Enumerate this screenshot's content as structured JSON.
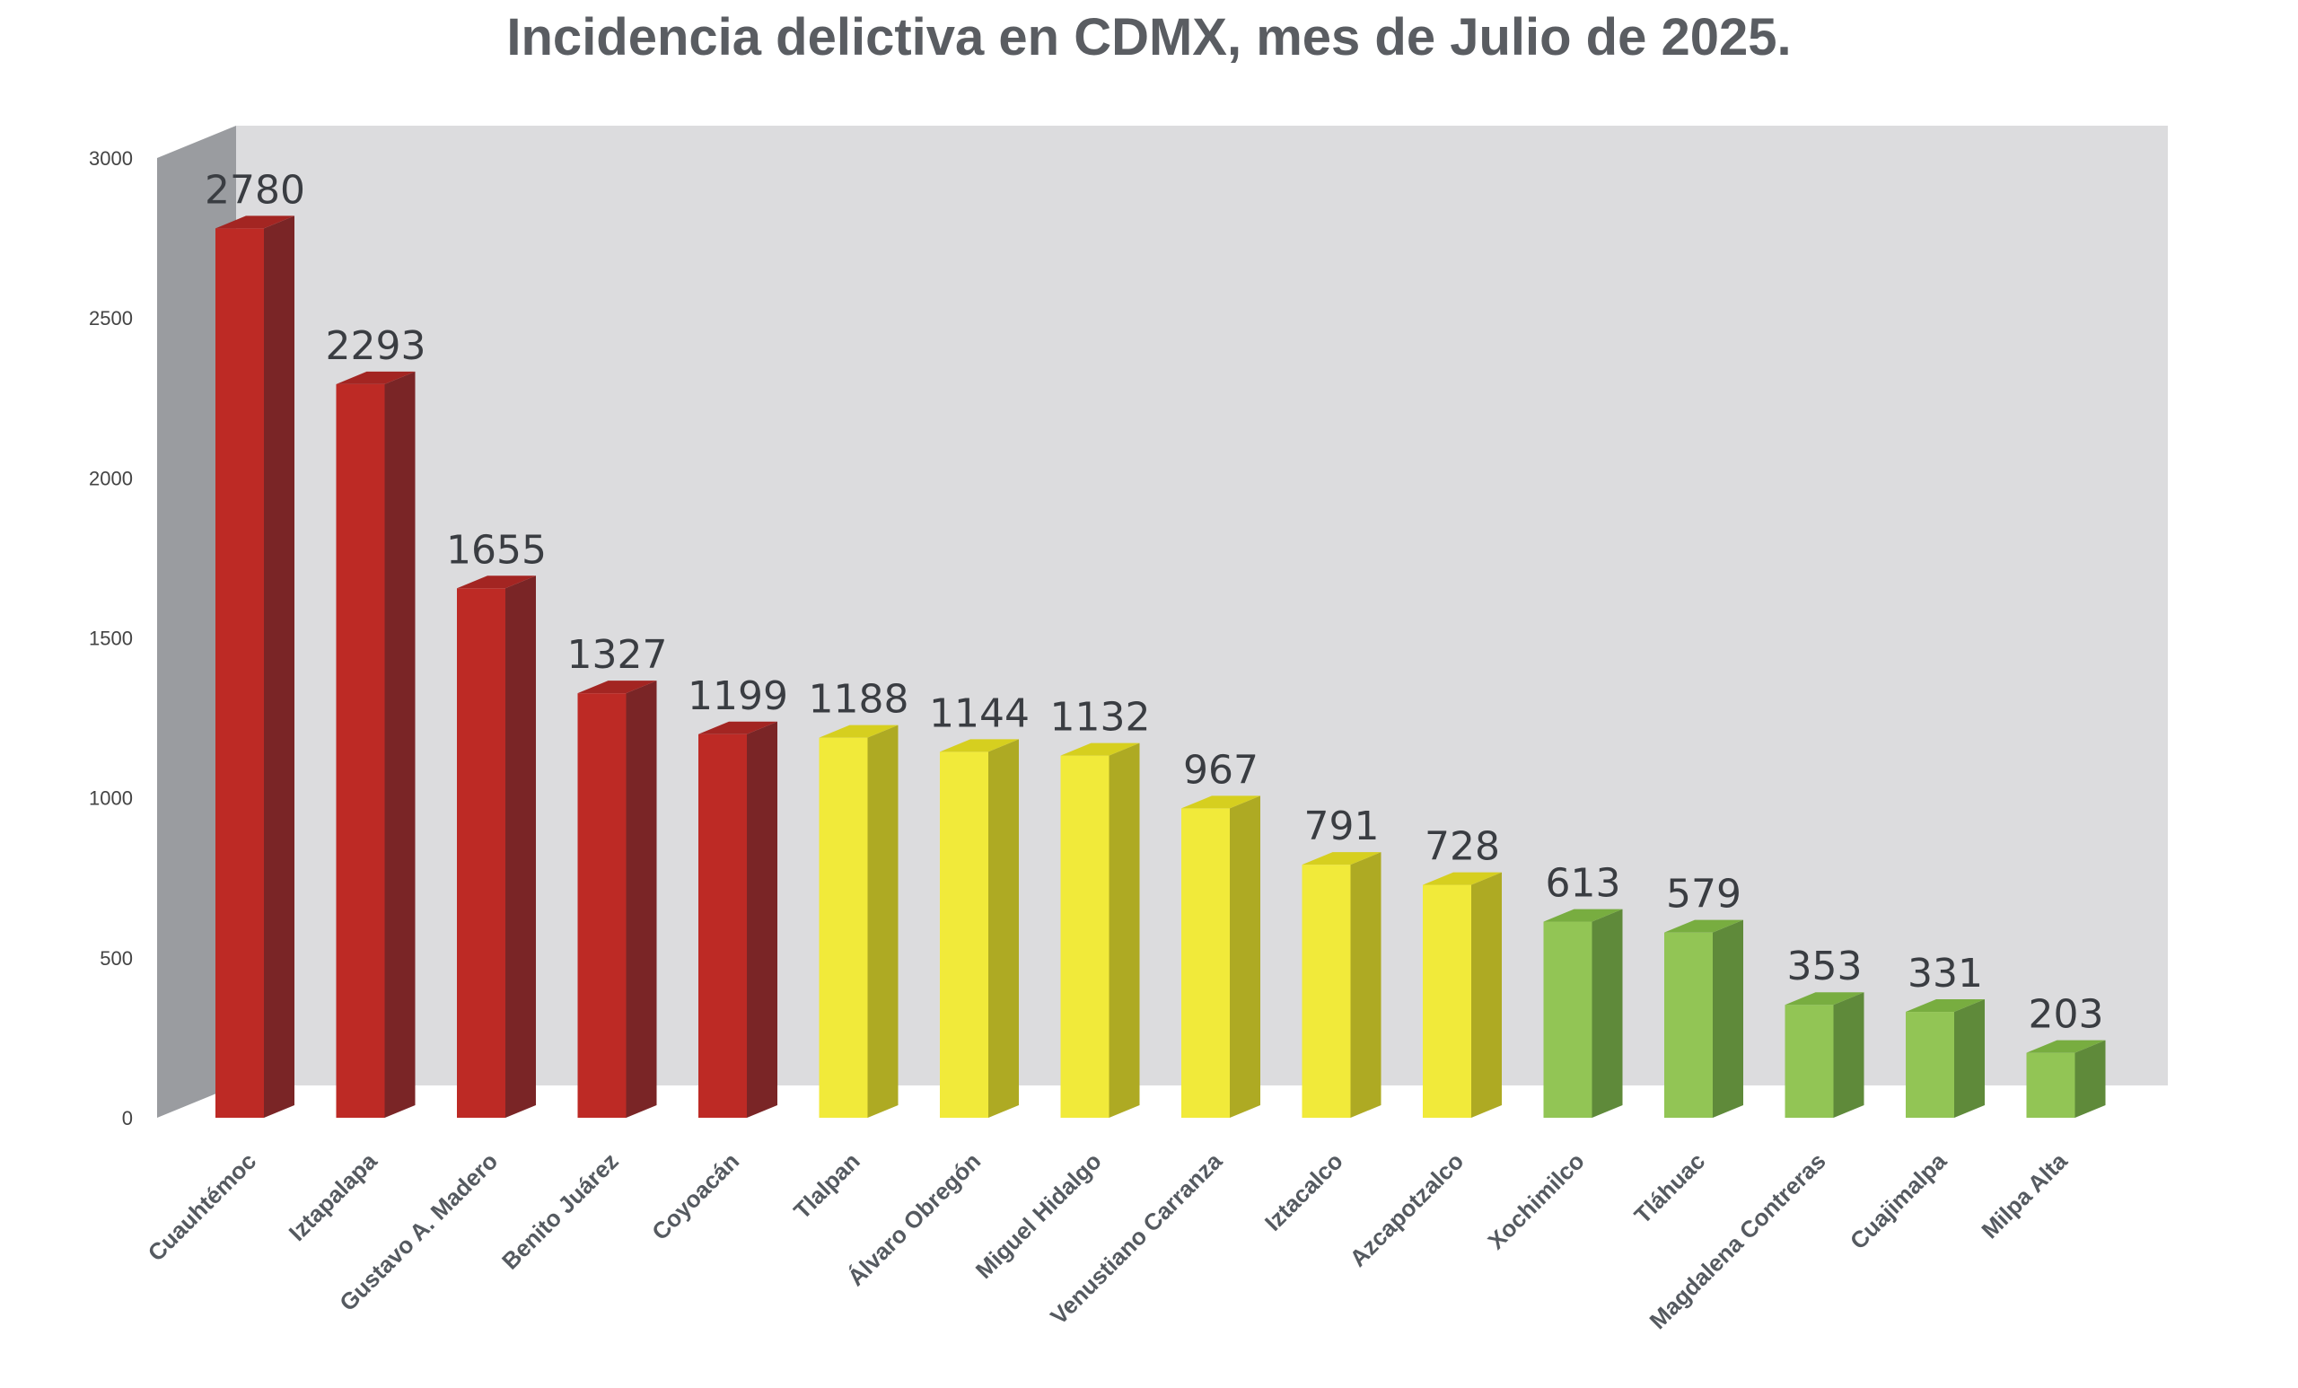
{
  "chart_data": {
    "type": "bar",
    "title": "Incidencia delictiva en CDMX, mes de Julio de 2025.",
    "xlabel": "",
    "ylabel": "",
    "ylim": [
      0,
      3000
    ],
    "yticks": [
      0,
      500,
      1000,
      1500,
      2000,
      2500,
      3000
    ],
    "grid": false,
    "legend": "none",
    "style": "3d-column",
    "categories": [
      "Cuauhtémoc",
      "Iztapalapa",
      "Gustavo A. Madero",
      "Benito Juárez",
      "Coyoacán",
      "Tlalpan",
      "Álvaro Obregón",
      "Miguel Hidalgo",
      "Venustiano Carranza",
      "Iztacalco",
      "Azcapotzalco",
      "Xochimilco",
      "Tláhuac",
      "Magdalena Contreras",
      "Cuajimalpa",
      "Milpa Alta"
    ],
    "values": [
      2780,
      2293,
      1655,
      1327,
      1199,
      1188,
      1144,
      1132,
      967,
      791,
      728,
      613,
      579,
      353,
      331,
      203
    ],
    "bar_colors": [
      "#bd2a25",
      "#bd2a25",
      "#bd2a25",
      "#bd2a25",
      "#bd2a25",
      "#f1ea3a",
      "#f1ea3a",
      "#f1ea3a",
      "#f1ea3a",
      "#f1ea3a",
      "#f1ea3a",
      "#92c555",
      "#92c555",
      "#92c555",
      "#92c555",
      "#92c555"
    ],
    "bar_side_colors": [
      "#7a2526",
      "#7a2526",
      "#7a2526",
      "#7a2526",
      "#7a2526",
      "#aeaa23",
      "#aeaa23",
      "#aeaa23",
      "#aeaa23",
      "#aeaa23",
      "#aeaa23",
      "#5f8a3a",
      "#5f8a3a",
      "#5f8a3a",
      "#5f8a3a",
      "#5f8a3a"
    ],
    "bar_top_colors": [
      "#a32522",
      "#a32522",
      "#a32522",
      "#a32522",
      "#a32522",
      "#d6cf1f",
      "#d6cf1f",
      "#d6cf1f",
      "#d6cf1f",
      "#d6cf1f",
      "#d6cf1f",
      "#78ad40",
      "#78ad40",
      "#78ad40",
      "#78ad40",
      "#78ad40"
    ],
    "colors": {
      "back_wall": "#dcdcde",
      "side_wall": "#9a9ca0"
    }
  }
}
